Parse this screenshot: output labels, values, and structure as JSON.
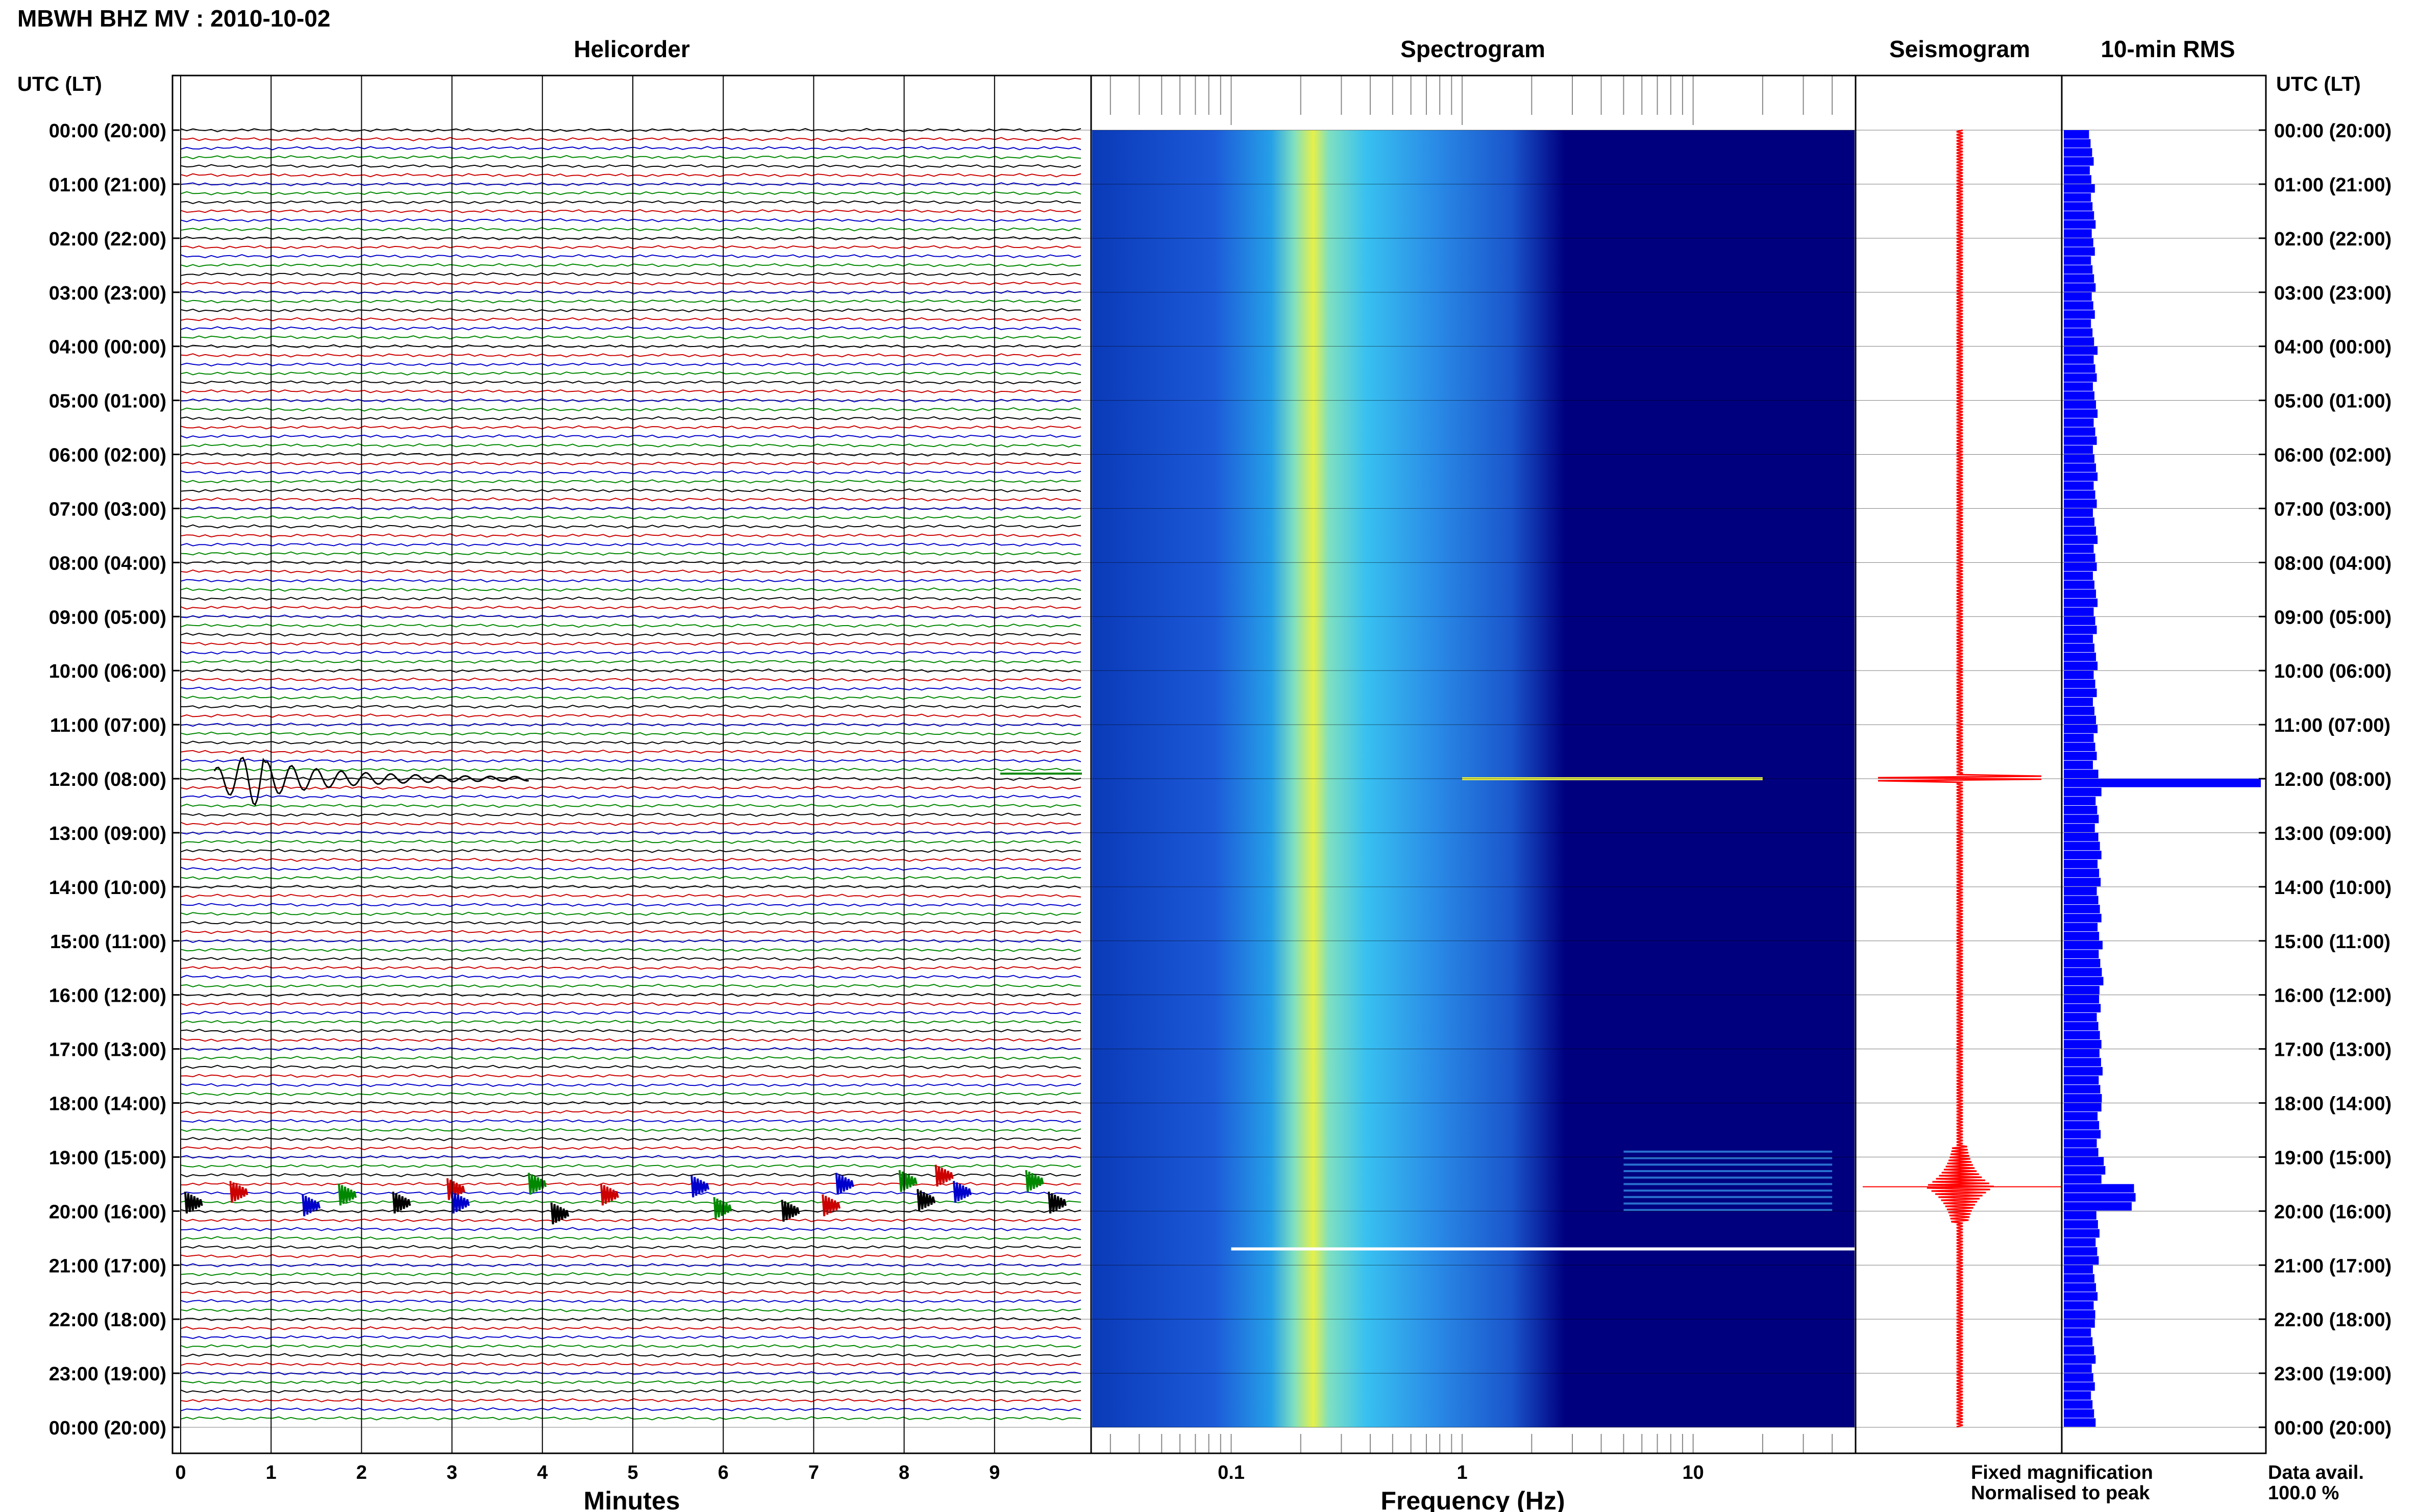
{
  "title": "MBWH BHZ MV : 2010-10-02",
  "colors": {
    "trace_cycle": [
      "#000000",
      "#cc0000",
      "#0000cc",
      "#008800"
    ],
    "spectrogram_bg": "#00007f",
    "seismogram": "#ff0000",
    "rms_bar": "#0000ff",
    "fixed_magnification": "#0000ff",
    "normalised_to_peak": "#ff0000"
  },
  "panels": {
    "helicorder": "Helicorder",
    "spectrogram": "Spectrogram",
    "seismogram": "Seismogram",
    "rms": "10-min RMS"
  },
  "axis": {
    "left_title": "UTC (LT)",
    "right_title": "UTC (LT)",
    "x_helicorder": "Minutes",
    "x_spectrogram": "Frequency (Hz)"
  },
  "time_labels": [
    "00:00 (20:00)",
    "01:00 (21:00)",
    "02:00 (22:00)",
    "03:00 (23:00)",
    "04:00 (00:00)",
    "05:00 (01:00)",
    "06:00 (02:00)",
    "07:00 (03:00)",
    "08:00 (04:00)",
    "09:00 (05:00)",
    "10:00 (06:00)",
    "11:00 (07:00)",
    "12:00 (08:00)",
    "13:00 (09:00)",
    "14:00 (10:00)",
    "15:00 (11:00)",
    "16:00 (12:00)",
    "17:00 (13:00)",
    "18:00 (14:00)",
    "19:00 (15:00)",
    "20:00 (16:00)",
    "21:00 (17:00)",
    "22:00 (18:00)",
    "23:00 (19:00)",
    "00:00 (20:00)"
  ],
  "minutes_ticks": [
    "0",
    "1",
    "2",
    "3",
    "4",
    "5",
    "6",
    "7",
    "8",
    "9"
  ],
  "freq_ticks": [
    "0.1",
    "1",
    "10"
  ],
  "legend": {
    "fixed": "Fixed magnification",
    "normalised": "Normalised to peak"
  },
  "availability": {
    "label": "Data avail.",
    "value": "100.0 %"
  },
  "chart_data": {
    "type": "heatmap",
    "title": "MBWH BHZ MV : 2010-10-02",
    "date": "2010-10-02",
    "station": "MBWH",
    "channel": "BHZ",
    "network": "MV",
    "time_axis": {
      "range_hours_utc": [
        0,
        24
      ],
      "timezone_offset_lt_hours": -4
    },
    "helicorder": {
      "minutes_range": [
        0,
        10
      ],
      "rows_per_hour": 6
    },
    "spectrogram": {
      "freq_range_hz": [
        0.025,
        50
      ],
      "log_scale": true,
      "peak_band_hz": 0.22
    },
    "events_hours_utc": [
      12.0,
      18.9,
      19.1,
      19.3,
      19.5,
      19.7,
      19.9
    ],
    "rms_10min": {
      "hours_utc": [
        0,
        1,
        2,
        3,
        4,
        5,
        6,
        7,
        8,
        9,
        10,
        11,
        12,
        13,
        14,
        15,
        16,
        17,
        18,
        19,
        19.5,
        20,
        21,
        22,
        23
      ],
      "values_relative": [
        0.13,
        0.14,
        0.14,
        0.14,
        0.15,
        0.15,
        0.15,
        0.15,
        0.15,
        0.15,
        0.15,
        0.15,
        1.0,
        0.17,
        0.17,
        0.18,
        0.17,
        0.18,
        0.17,
        0.19,
        0.35,
        0.16,
        0.15,
        0.14,
        0.14
      ]
    },
    "data_availability_percent": 100.0
  }
}
